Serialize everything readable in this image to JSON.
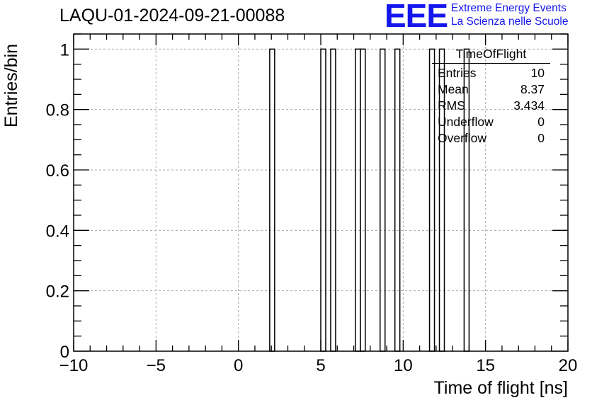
{
  "header": {
    "title": "LAQU-01-2024-09-21-00088",
    "logo": "EEE",
    "logo_line1": "Extreme Energy Events",
    "logo_line2": "La Scienza nelle Scuole"
  },
  "stats_box": {
    "name": "TimeOfFlight",
    "rows": [
      {
        "label": "Entries",
        "value": "10"
      },
      {
        "label": "Mean",
        "value": "8.37"
      },
      {
        "label": "RMS",
        "value": "3.434"
      },
      {
        "label": "Underflow",
        "value": "0"
      },
      {
        "label": "Overflow",
        "value": "0"
      }
    ]
  },
  "chart_data": {
    "type": "bar",
    "title": "LAQU-01-2024-09-21-00088",
    "xlabel": "Time of flight [ns]",
    "ylabel": "Entries/bin",
    "xlim": [
      -10,
      20
    ],
    "ylim": [
      0,
      1.05
    ],
    "bin_width": 0.3,
    "x_ticks": [
      -10,
      -5,
      0,
      5,
      10,
      15,
      20
    ],
    "x_tick_labels": [
      "−10",
      "−5",
      "0",
      "5",
      "10",
      "15",
      "20"
    ],
    "y_ticks": [
      0,
      0.2,
      0.4,
      0.6,
      0.8,
      1
    ],
    "y_tick_labels": [
      "0",
      "0.2",
      "0.4",
      "0.6",
      "0.8",
      "1"
    ],
    "grid": true,
    "bins": [
      {
        "x_low": 1.9,
        "x_high": 2.2,
        "value": 1
      },
      {
        "x_low": 5.0,
        "x_high": 5.3,
        "value": 1
      },
      {
        "x_low": 5.6,
        "x_high": 5.9,
        "value": 1
      },
      {
        "x_low": 7.1,
        "x_high": 7.4,
        "value": 1
      },
      {
        "x_low": 7.4,
        "x_high": 7.7,
        "value": 1
      },
      {
        "x_low": 8.6,
        "x_high": 8.9,
        "value": 1
      },
      {
        "x_low": 9.5,
        "x_high": 9.8,
        "value": 1
      },
      {
        "x_low": 11.6,
        "x_high": 11.9,
        "value": 1
      },
      {
        "x_low": 12.2,
        "x_high": 12.5,
        "value": 1
      },
      {
        "x_low": 13.7,
        "x_high": 14.0,
        "value": 1
      }
    ]
  }
}
